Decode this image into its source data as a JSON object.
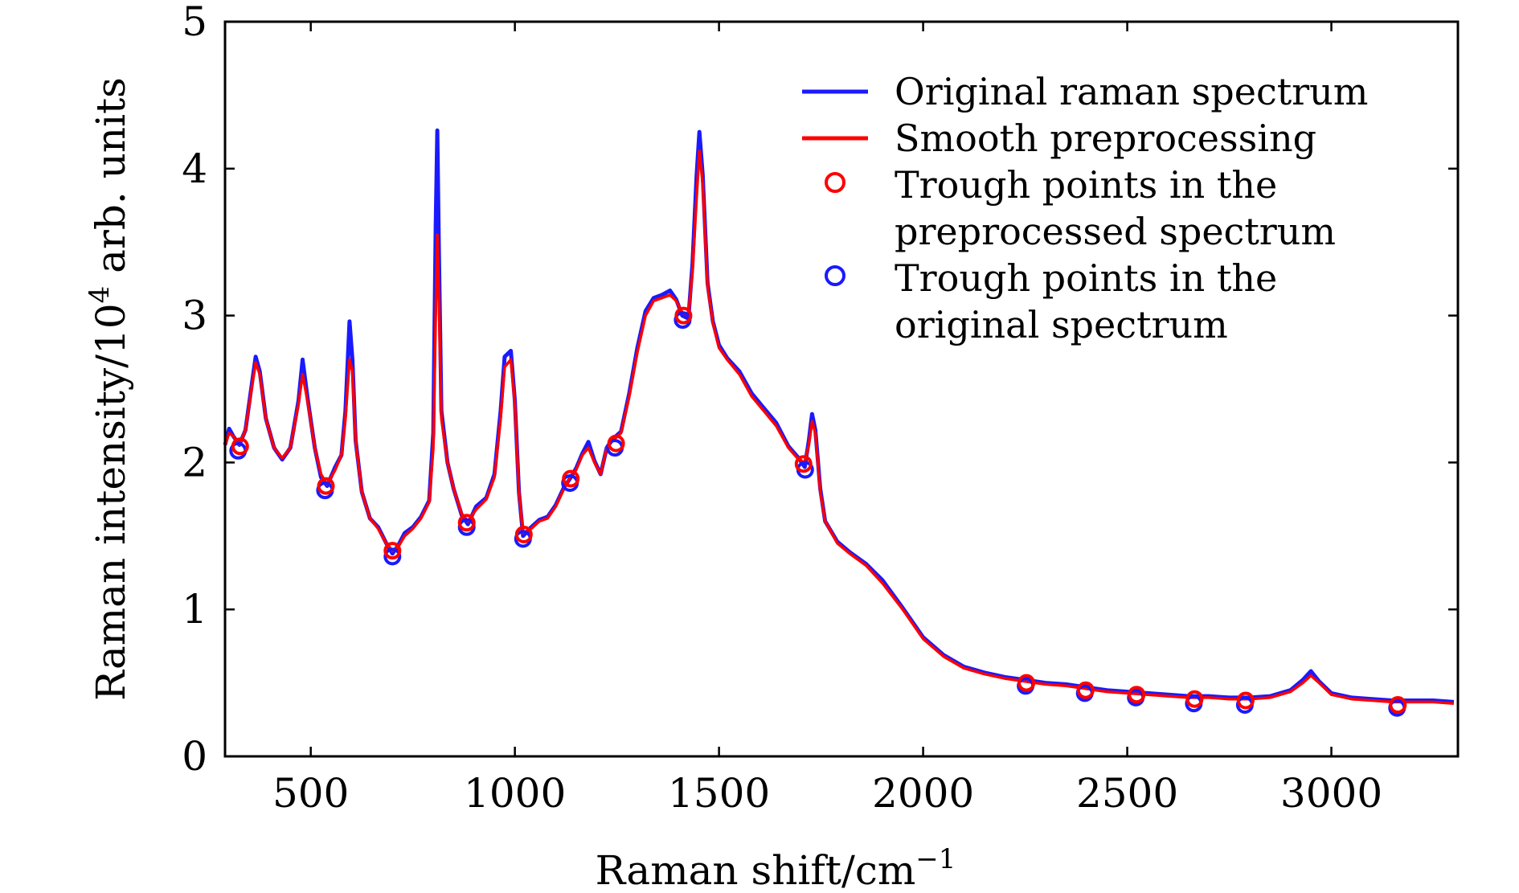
{
  "chart_data": {
    "type": "line",
    "xlabel": "Raman shift/cm",
    "xlabel_sup": "−1",
    "ylabel_pre": "Raman intensity/10",
    "ylabel_sup": "4",
    "ylabel_post": " arb. units",
    "xlim": [
      290,
      3310
    ],
    "ylim": [
      0,
      5
    ],
    "xticks": [
      500,
      1000,
      1500,
      2000,
      2500,
      3000
    ],
    "yticks": [
      0,
      1,
      2,
      3,
      4,
      5
    ],
    "grid": false,
    "legend_position": "top-right",
    "colors": {
      "original": "#1a1aff",
      "smooth": "#ff0000",
      "trough_pre": "#ff0000",
      "trough_orig": "#1a1aff"
    },
    "legend": [
      {
        "key": "original",
        "kind": "line",
        "lines": [
          "Original raman spectrum"
        ]
      },
      {
        "key": "smooth",
        "kind": "line",
        "lines": [
          "Smooth preprocessing"
        ]
      },
      {
        "key": "trough_pre",
        "kind": "marker",
        "lines": [
          "Trough points in the",
          "preprocessed spectrum"
        ]
      },
      {
        "key": "trough_orig",
        "kind": "marker",
        "lines": [
          "Trough points in the",
          "original spectrum"
        ]
      }
    ],
    "series": [
      {
        "name": "Smooth preprocessing",
        "key": "smooth",
        "points": [
          [
            290,
            2.12
          ],
          [
            300,
            2.2
          ],
          [
            310,
            2.18
          ],
          [
            325,
            2.12
          ],
          [
            340,
            2.22
          ],
          [
            355,
            2.5
          ],
          [
            365,
            2.68
          ],
          [
            375,
            2.6
          ],
          [
            390,
            2.3
          ],
          [
            410,
            2.1
          ],
          [
            430,
            2.03
          ],
          [
            450,
            2.1
          ],
          [
            470,
            2.4
          ],
          [
            480,
            2.6
          ],
          [
            492,
            2.42
          ],
          [
            510,
            2.1
          ],
          [
            525,
            1.92
          ],
          [
            540,
            1.85
          ],
          [
            560,
            1.95
          ],
          [
            575,
            2.05
          ],
          [
            585,
            2.3
          ],
          [
            595,
            2.7
          ],
          [
            602,
            2.62
          ],
          [
            610,
            2.15
          ],
          [
            625,
            1.8
          ],
          [
            645,
            1.62
          ],
          [
            665,
            1.55
          ],
          [
            685,
            1.45
          ],
          [
            700,
            1.4
          ],
          [
            715,
            1.43
          ],
          [
            730,
            1.5
          ],
          [
            750,
            1.55
          ],
          [
            770,
            1.62
          ],
          [
            790,
            1.73
          ],
          [
            800,
            2.1
          ],
          [
            806,
            3.0
          ],
          [
            810,
            3.55
          ],
          [
            814,
            3.1
          ],
          [
            820,
            2.3
          ],
          [
            835,
            2.0
          ],
          [
            850,
            1.82
          ],
          [
            870,
            1.65
          ],
          [
            885,
            1.6
          ],
          [
            905,
            1.68
          ],
          [
            930,
            1.75
          ],
          [
            950,
            1.9
          ],
          [
            965,
            2.3
          ],
          [
            975,
            2.65
          ],
          [
            990,
            2.7
          ],
          [
            1000,
            2.4
          ],
          [
            1010,
            1.8
          ],
          [
            1020,
            1.52
          ],
          [
            1040,
            1.55
          ],
          [
            1060,
            1.6
          ],
          [
            1080,
            1.62
          ],
          [
            1100,
            1.7
          ],
          [
            1120,
            1.82
          ],
          [
            1135,
            1.9
          ],
          [
            1150,
            1.95
          ],
          [
            1165,
            2.05
          ],
          [
            1180,
            2.1
          ],
          [
            1195,
            2.0
          ],
          [
            1210,
            1.92
          ],
          [
            1225,
            2.1
          ],
          [
            1240,
            2.15
          ],
          [
            1260,
            2.2
          ],
          [
            1280,
            2.45
          ],
          [
            1300,
            2.75
          ],
          [
            1320,
            3.0
          ],
          [
            1340,
            3.1
          ],
          [
            1360,
            3.12
          ],
          [
            1380,
            3.14
          ],
          [
            1395,
            3.1
          ],
          [
            1410,
            3.02
          ],
          [
            1425,
            3.0
          ],
          [
            1435,
            3.3
          ],
          [
            1445,
            3.8
          ],
          [
            1452,
            4.12
          ],
          [
            1460,
            3.9
          ],
          [
            1472,
            3.2
          ],
          [
            1485,
            2.95
          ],
          [
            1500,
            2.78
          ],
          [
            1520,
            2.7
          ],
          [
            1550,
            2.6
          ],
          [
            1580,
            2.45
          ],
          [
            1610,
            2.35
          ],
          [
            1640,
            2.25
          ],
          [
            1670,
            2.1
          ],
          [
            1695,
            2.02
          ],
          [
            1710,
            2.0
          ],
          [
            1720,
            2.12
          ],
          [
            1728,
            2.28
          ],
          [
            1736,
            2.2
          ],
          [
            1748,
            1.8
          ],
          [
            1760,
            1.6
          ],
          [
            1790,
            1.45
          ],
          [
            1820,
            1.38
          ],
          [
            1860,
            1.3
          ],
          [
            1900,
            1.18
          ],
          [
            1950,
            1.0
          ],
          [
            2000,
            0.8
          ],
          [
            2050,
            0.68
          ],
          [
            2100,
            0.6
          ],
          [
            2150,
            0.56
          ],
          [
            2200,
            0.53
          ],
          [
            2250,
            0.51
          ],
          [
            2300,
            0.49
          ],
          [
            2350,
            0.48
          ],
          [
            2400,
            0.46
          ],
          [
            2450,
            0.44
          ],
          [
            2500,
            0.43
          ],
          [
            2550,
            0.42
          ],
          [
            2600,
            0.41
          ],
          [
            2650,
            0.4
          ],
          [
            2700,
            0.4
          ],
          [
            2750,
            0.39
          ],
          [
            2800,
            0.39
          ],
          [
            2850,
            0.4
          ],
          [
            2900,
            0.44
          ],
          [
            2930,
            0.5
          ],
          [
            2950,
            0.55
          ],
          [
            2970,
            0.5
          ],
          [
            3000,
            0.42
          ],
          [
            3050,
            0.39
          ],
          [
            3100,
            0.38
          ],
          [
            3150,
            0.37
          ],
          [
            3200,
            0.37
          ],
          [
            3250,
            0.37
          ],
          [
            3300,
            0.36
          ]
        ]
      },
      {
        "name": "Original raman spectrum",
        "key": "original",
        "points": [
          [
            290,
            2.12
          ],
          [
            300,
            2.23
          ],
          [
            310,
            2.18
          ],
          [
            325,
            2.12
          ],
          [
            340,
            2.22
          ],
          [
            355,
            2.52
          ],
          [
            365,
            2.72
          ],
          [
            375,
            2.62
          ],
          [
            390,
            2.3
          ],
          [
            410,
            2.1
          ],
          [
            430,
            2.02
          ],
          [
            450,
            2.1
          ],
          [
            470,
            2.42
          ],
          [
            480,
            2.7
          ],
          [
            492,
            2.44
          ],
          [
            510,
            2.1
          ],
          [
            525,
            1.9
          ],
          [
            540,
            1.84
          ],
          [
            560,
            1.97
          ],
          [
            575,
            2.05
          ],
          [
            585,
            2.35
          ],
          [
            595,
            2.96
          ],
          [
            602,
            2.7
          ],
          [
            610,
            2.15
          ],
          [
            625,
            1.8
          ],
          [
            645,
            1.62
          ],
          [
            665,
            1.56
          ],
          [
            685,
            1.45
          ],
          [
            700,
            1.38
          ],
          [
            715,
            1.44
          ],
          [
            730,
            1.52
          ],
          [
            750,
            1.56
          ],
          [
            770,
            1.63
          ],
          [
            790,
            1.74
          ],
          [
            800,
            2.2
          ],
          [
            806,
            3.6
          ],
          [
            810,
            4.26
          ],
          [
            814,
            3.4
          ],
          [
            820,
            2.35
          ],
          [
            835,
            2.0
          ],
          [
            850,
            1.82
          ],
          [
            870,
            1.64
          ],
          [
            885,
            1.58
          ],
          [
            905,
            1.7
          ],
          [
            930,
            1.76
          ],
          [
            950,
            1.92
          ],
          [
            965,
            2.35
          ],
          [
            975,
            2.72
          ],
          [
            990,
            2.76
          ],
          [
            1000,
            2.42
          ],
          [
            1010,
            1.8
          ],
          [
            1020,
            1.5
          ],
          [
            1040,
            1.56
          ],
          [
            1060,
            1.61
          ],
          [
            1080,
            1.63
          ],
          [
            1100,
            1.71
          ],
          [
            1120,
            1.83
          ],
          [
            1135,
            1.89
          ],
          [
            1150,
            1.96
          ],
          [
            1165,
            2.06
          ],
          [
            1180,
            2.14
          ],
          [
            1195,
            2.01
          ],
          [
            1210,
            1.92
          ],
          [
            1225,
            2.1
          ],
          [
            1240,
            2.16
          ],
          [
            1260,
            2.21
          ],
          [
            1280,
            2.47
          ],
          [
            1300,
            2.78
          ],
          [
            1320,
            3.03
          ],
          [
            1340,
            3.12
          ],
          [
            1360,
            3.14
          ],
          [
            1380,
            3.17
          ],
          [
            1395,
            3.11
          ],
          [
            1410,
            3.0
          ],
          [
            1425,
            2.98
          ],
          [
            1435,
            3.35
          ],
          [
            1445,
            3.95
          ],
          [
            1452,
            4.25
          ],
          [
            1460,
            3.96
          ],
          [
            1472,
            3.22
          ],
          [
            1485,
            2.96
          ],
          [
            1500,
            2.8
          ],
          [
            1520,
            2.71
          ],
          [
            1550,
            2.62
          ],
          [
            1580,
            2.47
          ],
          [
            1610,
            2.37
          ],
          [
            1640,
            2.27
          ],
          [
            1670,
            2.11
          ],
          [
            1695,
            2.03
          ],
          [
            1710,
            1.97
          ],
          [
            1720,
            2.15
          ],
          [
            1728,
            2.33
          ],
          [
            1736,
            2.22
          ],
          [
            1748,
            1.82
          ],
          [
            1760,
            1.6
          ],
          [
            1790,
            1.46
          ],
          [
            1820,
            1.39
          ],
          [
            1860,
            1.31
          ],
          [
            1900,
            1.2
          ],
          [
            1950,
            1.01
          ],
          [
            2000,
            0.81
          ],
          [
            2050,
            0.69
          ],
          [
            2100,
            0.61
          ],
          [
            2150,
            0.57
          ],
          [
            2200,
            0.54
          ],
          [
            2250,
            0.52
          ],
          [
            2300,
            0.5
          ],
          [
            2350,
            0.49
          ],
          [
            2400,
            0.47
          ],
          [
            2450,
            0.45
          ],
          [
            2500,
            0.44
          ],
          [
            2550,
            0.43
          ],
          [
            2600,
            0.42
          ],
          [
            2650,
            0.41
          ],
          [
            2700,
            0.41
          ],
          [
            2750,
            0.4
          ],
          [
            2800,
            0.4
          ],
          [
            2850,
            0.41
          ],
          [
            2900,
            0.45
          ],
          [
            2930,
            0.52
          ],
          [
            2950,
            0.58
          ],
          [
            2970,
            0.51
          ],
          [
            3000,
            0.43
          ],
          [
            3050,
            0.4
          ],
          [
            3100,
            0.39
          ],
          [
            3150,
            0.38
          ],
          [
            3200,
            0.38
          ],
          [
            3250,
            0.38
          ],
          [
            3300,
            0.37
          ]
        ]
      },
      {
        "name": "Trough points in the preprocessed spectrum",
        "key": "trough_pre",
        "type": "scatter",
        "points": [
          [
            327,
            2.11
          ],
          [
            537,
            1.84
          ],
          [
            700,
            1.4
          ],
          [
            882,
            1.59
          ],
          [
            1022,
            1.51
          ],
          [
            1137,
            1.89
          ],
          [
            1248,
            2.13
          ],
          [
            1413,
            3.0
          ],
          [
            1707,
            1.99
          ],
          [
            2253,
            0.5
          ],
          [
            2398,
            0.45
          ],
          [
            2523,
            0.42
          ],
          [
            2665,
            0.39
          ],
          [
            2790,
            0.38
          ],
          [
            3163,
            0.35
          ]
        ]
      },
      {
        "name": "Trough points in the original spectrum",
        "key": "trough_orig",
        "type": "scatter",
        "points": [
          [
            322,
            2.08
          ],
          [
            535,
            1.81
          ],
          [
            700,
            1.36
          ],
          [
            882,
            1.56
          ],
          [
            1020,
            1.48
          ],
          [
            1135,
            1.86
          ],
          [
            1245,
            2.1
          ],
          [
            1411,
            2.97
          ],
          [
            1711,
            1.95
          ],
          [
            2251,
            0.48
          ],
          [
            2396,
            0.43
          ],
          [
            2521,
            0.4
          ],
          [
            2663,
            0.36
          ],
          [
            2788,
            0.35
          ],
          [
            3161,
            0.33
          ]
        ]
      }
    ]
  }
}
